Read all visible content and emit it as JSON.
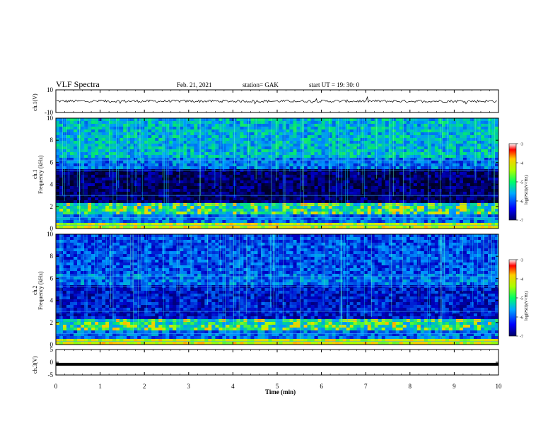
{
  "header": {
    "title": "VLF Spectra",
    "date": "Feb. 21, 2021",
    "station": "station= GAK",
    "start_ut": "start  UT  =   19: 30: 0"
  },
  "colors": {
    "trace": "#000000",
    "background_spec": "#000033"
  },
  "chart_data": [
    {
      "type": "line",
      "name": "ch1-waveform",
      "ylabel": "ch.1(V)",
      "ylim": [
        -10,
        10
      ],
      "yticks": [
        "10",
        "-10"
      ],
      "xlim": [
        0,
        10
      ],
      "description_level": 0
    },
    {
      "type": "heatmap",
      "name": "ch1-spectrogram",
      "ylabel": "ch.1\nFrequency (kHz)",
      "ylabel_line1": "ch.1",
      "ylabel_line2": "Frequency (kHz)",
      "ylim": [
        0,
        10
      ],
      "yticks": [
        "0",
        "2",
        "4",
        "6",
        "8",
        "10"
      ],
      "xlim": [
        0,
        10
      ],
      "colorbar": {
        "label": "log(PSD)(V²/Hz)",
        "range": [
          -7,
          -3
        ],
        "ticks": [
          "-3",
          "-4",
          "-5",
          "-6",
          "-7"
        ]
      }
    },
    {
      "type": "heatmap",
      "name": "ch2-spectrogram",
      "ylabel_line1": "ch.2",
      "ylabel_line2": "Frequency (kHz)",
      "ylim": [
        0,
        10
      ],
      "yticks": [
        "0",
        "2",
        "4",
        "6",
        "8",
        "10"
      ],
      "xlim": [
        0,
        10
      ],
      "colorbar": {
        "label": "log(PSD)(V²/Hz)",
        "range": [
          -7,
          -3
        ],
        "ticks": [
          "-3",
          "-4",
          "-5",
          "-6",
          "-7"
        ]
      }
    },
    {
      "type": "line",
      "name": "ch3-waveform",
      "ylabel": "ch.3(V)",
      "ylim": [
        -5,
        5
      ],
      "yticks": [
        "5",
        "0",
        "-5"
      ],
      "xlim": [
        0,
        10
      ],
      "level": -0.8
    }
  ],
  "xaxis": {
    "label": "Time  (min)",
    "ticks": [
      "0",
      "1",
      "2",
      "3",
      "4",
      "5",
      "6",
      "7",
      "8",
      "9",
      "10"
    ]
  }
}
